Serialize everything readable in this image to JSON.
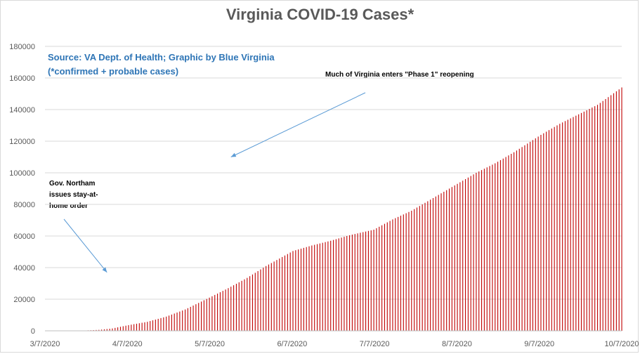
{
  "chart_data": {
    "type": "bar",
    "title": "Virginia COVID-19 Cases*",
    "source_lines": [
      "Source: VA Dept. of Health; Graphic by Blue Virginia",
      "(*confirmed + probable cases)"
    ],
    "xlabel": "",
    "ylabel": "",
    "ylim": [
      0,
      180000
    ],
    "yticks": [
      "0",
      "20000",
      "40000",
      "60000",
      "80000",
      "100000",
      "120000",
      "140000",
      "160000",
      "180000"
    ],
    "xticks": [
      "3/7/2020",
      "4/7/2020",
      "5/7/2020",
      "6/7/2020",
      "7/7/2020",
      "8/7/2020",
      "9/7/2020",
      "10/7/2020"
    ],
    "x_range": [
      "2020-03-07",
      "2020-10-07"
    ],
    "gridlines": "horizontal",
    "bar_color": "#c00000",
    "series": [
      {
        "values": [
          {
            "date": "2020-03-07",
            "value": 2
          },
          {
            "date": "2020-03-22",
            "value": 220
          },
          {
            "date": "2020-03-27",
            "value": 600
          },
          {
            "date": "2020-04-01",
            "value": 1500
          },
          {
            "date": "2020-04-07",
            "value": 3600
          },
          {
            "date": "2020-04-14",
            "value": 5700
          },
          {
            "date": "2020-04-21",
            "value": 9000
          },
          {
            "date": "2020-04-28",
            "value": 13500
          },
          {
            "date": "2020-05-07",
            "value": 21000
          },
          {
            "date": "2020-05-14",
            "value": 27000
          },
          {
            "date": "2020-05-21",
            "value": 33500
          },
          {
            "date": "2020-05-28",
            "value": 41000
          },
          {
            "date": "2020-06-07",
            "value": 50500
          },
          {
            "date": "2020-06-14",
            "value": 54000
          },
          {
            "date": "2020-06-21",
            "value": 57000
          },
          {
            "date": "2020-06-28",
            "value": 60500
          },
          {
            "date": "2020-07-07",
            "value": 64000
          },
          {
            "date": "2020-07-14",
            "value": 70500
          },
          {
            "date": "2020-07-21",
            "value": 76000
          },
          {
            "date": "2020-07-28",
            "value": 83000
          },
          {
            "date": "2020-08-07",
            "value": 93000
          },
          {
            "date": "2020-08-14",
            "value": 100000
          },
          {
            "date": "2020-08-21",
            "value": 106000
          },
          {
            "date": "2020-08-28",
            "value": 113000
          },
          {
            "date": "2020-09-07",
            "value": 124000
          },
          {
            "date": "2020-09-14",
            "value": 131000
          },
          {
            "date": "2020-09-21",
            "value": 137000
          },
          {
            "date": "2020-09-28",
            "value": 143000
          },
          {
            "date": "2020-10-07",
            "value": 154000
          },
          {
            "date": "2020-10-10",
            "value": 156500
          }
        ]
      }
    ],
    "annotations": [
      {
        "text": "Much of Virginia enters \"Phase 1\" reopening",
        "date": "2020-05-15",
        "y": 110000
      },
      {
        "text": "Gov. Northam issues stay-at-home order",
        "date": "2020-03-30",
        "y": 37000
      }
    ]
  }
}
